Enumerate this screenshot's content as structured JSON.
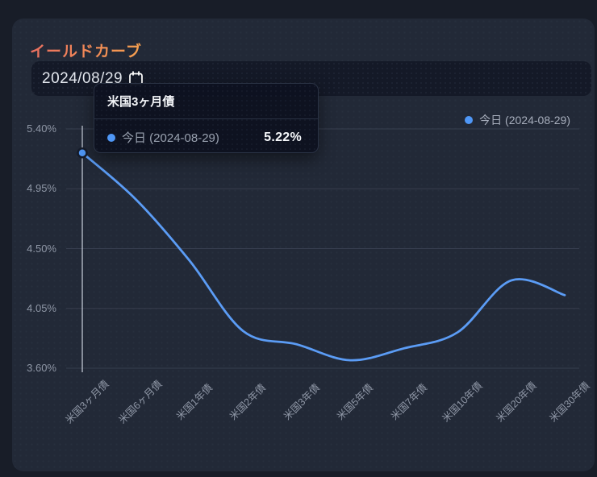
{
  "header": {
    "title": "イールドカーブ"
  },
  "date_picker": {
    "value": "2024/08/29",
    "icon": "calendar-icon"
  },
  "legend": {
    "label": "今日 (2024-08-29)"
  },
  "tooltip": {
    "title": "米国3ヶ月債",
    "series_label": "今日 (2024-08-29)",
    "value": "5.22%"
  },
  "chart_data": {
    "type": "line",
    "title": "イールドカーブ",
    "categories": [
      "米国3ヶ月債",
      "米国6ヶ月債",
      "米国1年債",
      "米国2年債",
      "米国3年債",
      "米国5年債",
      "米国7年債",
      "米国10年債",
      "米国20年債",
      "米国30年債"
    ],
    "series": [
      {
        "name": "今日 (2024-08-29)",
        "values": [
          5.22,
          4.87,
          4.41,
          3.88,
          3.78,
          3.66,
          3.75,
          3.87,
          4.26,
          4.15
        ]
      }
    ],
    "y_tick_labels": [
      "5.40%",
      "4.95%",
      "4.50%",
      "4.05%",
      "3.60%"
    ],
    "y_tick_values": [
      5.4,
      4.95,
      4.5,
      4.05,
      3.6
    ],
    "ylim": [
      3.6,
      5.4
    ],
    "grid": "horizontal-only",
    "legend_position": "top-right",
    "smooth": true,
    "highlighted_point": {
      "category_index": 0,
      "category": "米国3ヶ月債",
      "value": 5.22,
      "value_label": "5.22%"
    }
  },
  "colors": {
    "page_bg": "#181d28",
    "card_bg": "#222937",
    "input_bg": "#141927",
    "tooltip_bg": "#0d1220",
    "tooltip_border": "#2a3244",
    "grid": "#373e4f",
    "axis_label": "#8f97a6",
    "legend_text": "#a6adbb",
    "line": "#5b9cf5",
    "point_fill": "#4f97f6",
    "point_ring": "#161c2a",
    "crosshair": "#dde3ed",
    "title_gradient_from": "#ea6f60",
    "title_gradient_to": "#f7a14f",
    "date_text": "#e3e7ee",
    "tooltip_label": "#9aa2b0",
    "tooltip_value": "#f5f7fa",
    "tooltip_title": "#f3f5f8"
  }
}
